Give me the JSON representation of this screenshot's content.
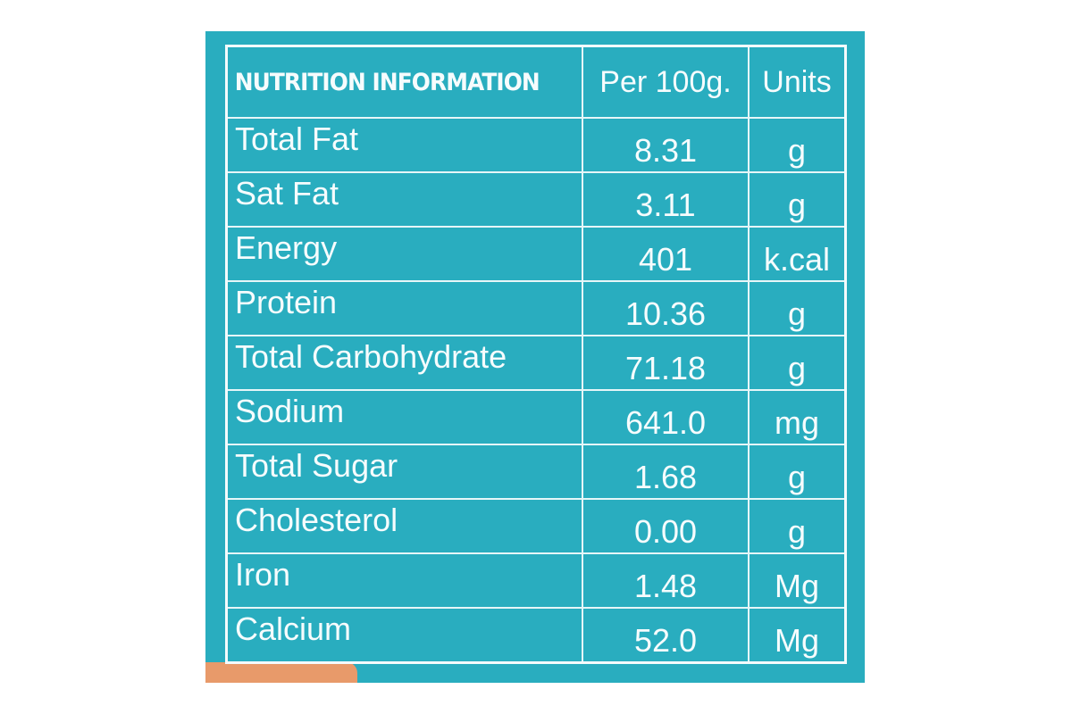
{
  "table": {
    "header": [
      "NUTRITION INFORMATION",
      "Per 100g.",
      "Units"
    ],
    "rows": [
      [
        "Total Fat",
        "8.31",
        "g"
      ],
      [
        "Sat Fat",
        "3.11",
        "g"
      ],
      [
        "Energy",
        "401",
        "k.cal"
      ],
      [
        "Protein",
        "10.36",
        "g"
      ],
      [
        "Total Carbohydrate",
        "71.18",
        "g"
      ],
      [
        "Sodium",
        "641.0",
        "mg"
      ],
      [
        "Total Sugar",
        "1.68",
        "g"
      ],
      [
        "Cholesterol",
        "0.00",
        "g"
      ],
      [
        "Iron",
        "1.48",
        "Mg"
      ],
      [
        "Calcium",
        "52.0",
        "Mg"
      ]
    ]
  }
}
